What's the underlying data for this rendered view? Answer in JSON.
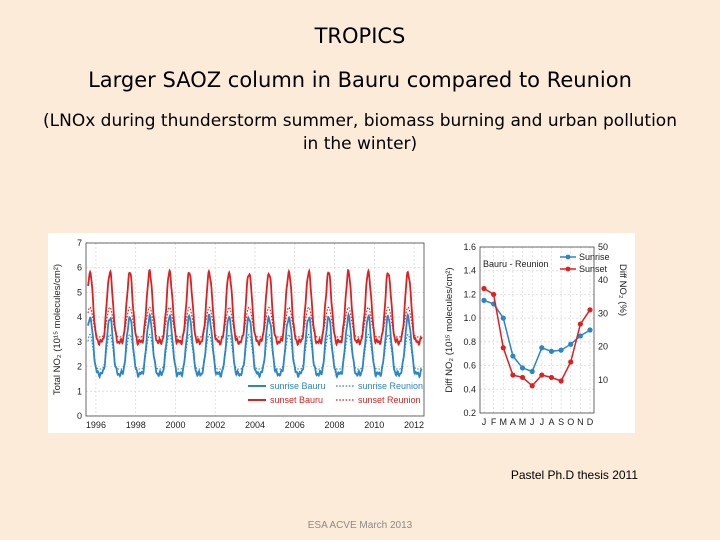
{
  "slide": {
    "title": "TROPICS",
    "subtitle": "Larger SAOZ column in Bauru compared to Reunion",
    "note": "(LNOx during thunderstorm summer, biomass burning and urban pollution in the winter)",
    "credit": "Pastel Ph.D thesis 2011",
    "footer": "ESA ACVE March 2013"
  },
  "colors": {
    "blue": "#2a86c7",
    "red": "#e02020",
    "background": "#fcebd9"
  },
  "chart_data": [
    {
      "type": "line",
      "ylabel": "Total NO₂ (10¹⁵ molecules/cm²)",
      "xlabel": "",
      "xlim": [
        1995.5,
        2012.5
      ],
      "ylim": [
        0,
        7
      ],
      "x_ticks": [
        "1996",
        "1998",
        "2000",
        "2002",
        "2004",
        "2006",
        "2008",
        "2010",
        "2012"
      ],
      "y_ticks": [
        "0",
        "1",
        "2",
        "3",
        "4",
        "5",
        "6",
        "7"
      ],
      "grid": true,
      "legend_position": "bottom-right",
      "series": [
        {
          "name": "sunrise Bauru",
          "color": "#2a86c7",
          "style": "solid",
          "seasonal_min": 1.7,
          "seasonal_max": 4.0,
          "peak_month": "September"
        },
        {
          "name": "sunset Bauru",
          "color": "#e02020",
          "style": "solid",
          "seasonal_min": 3.0,
          "seasonal_max": 5.8,
          "peak_month": "September"
        },
        {
          "name": "sunrise Reunion",
          "color": "#2a86c7",
          "style": "dotted",
          "seasonal_min": 1.9,
          "seasonal_max": 3.3,
          "peak_month": "September"
        },
        {
          "name": "sunset Reunion",
          "color": "#e02020",
          "style": "dotted",
          "seasonal_min": 3.2,
          "seasonal_max": 4.4,
          "peak_month": "September"
        }
      ]
    },
    {
      "type": "line",
      "ylabel": "Diff NO₂ (10¹⁵ molecules/cm²)",
      "ylabel_right": "Diff NO₂ (%)",
      "xlabel": "",
      "categories": [
        "J",
        "F",
        "M",
        "A",
        "M",
        "J",
        "J",
        "A",
        "S",
        "O",
        "N",
        "D"
      ],
      "ylim": [
        0.2,
        1.6
      ],
      "y_ticks": [
        "0.2",
        "0.4",
        "0.6",
        "0.8",
        "1.0",
        "1.2",
        "1.4",
        "1.6"
      ],
      "ylim_right": [
        0,
        50
      ],
      "y_ticks_right": [
        "10",
        "20",
        "30",
        "40",
        "50"
      ],
      "grid": true,
      "legend_title": "Bauru - Reunion",
      "legend_position": "top-left",
      "series": [
        {
          "name": "Sunrise",
          "color": "#2a86c7",
          "values": [
            1.15,
            1.12,
            1.0,
            0.68,
            0.58,
            0.55,
            0.75,
            0.72,
            0.73,
            0.78,
            0.85,
            0.9
          ]
        },
        {
          "name": "Sunset",
          "color": "#e02020",
          "values": [
            1.25,
            1.2,
            0.75,
            0.52,
            0.5,
            0.43,
            0.52,
            0.5,
            0.47,
            0.63,
            0.95,
            1.07
          ]
        }
      ]
    }
  ]
}
